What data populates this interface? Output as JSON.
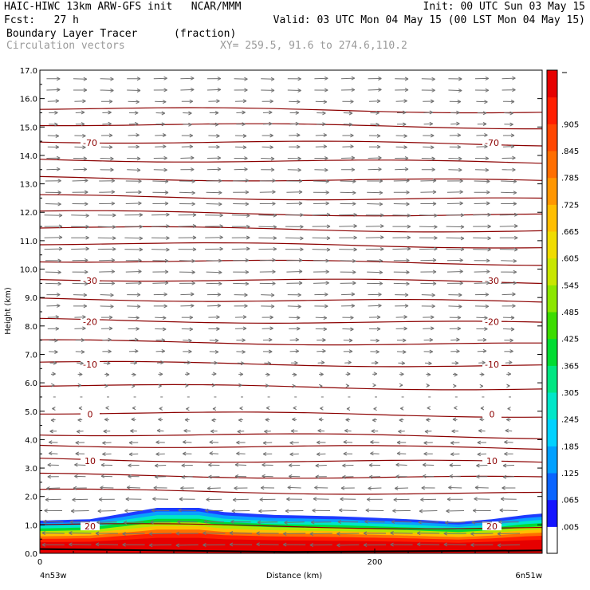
{
  "header": {
    "line1_left": "HAIC-HIWC 13km ARW-GFS init   NCAR/MMM",
    "line1_right": "Init: 00 UTC Sun 03 May 15",
    "line2_left": "Fcst:   27 h",
    "line2_right": "Valid: 03 UTC Mon 04 May 15 (00 LST Mon 04 May 15)",
    "field_name": "Boundary Layer Tracer",
    "field_units": "(fraction)",
    "vector_label": "Circulation vectors",
    "xy_label": "XY= 259.5, 91.6 to 274.6,110.2"
  },
  "chart_data": {
    "type": "heatmap",
    "title": "Boundary Layer Tracer",
    "ylabel": "Height (km)",
    "xlabel": "Distance (km)",
    "ylim": [
      0,
      17
    ],
    "yticks": [
      "0.0",
      "1.0",
      "2.0",
      "3.0",
      "4.0",
      "5.0",
      "6.0",
      "7.0",
      "8.0",
      "9.0",
      "10.0",
      "11.0",
      "12.0",
      "13.0",
      "14.0",
      "15.0",
      "16.0",
      "17.0"
    ],
    "xticks": [
      "0",
      "200"
    ],
    "x_start_label": "4n53w",
    "x_end_label": "6n51w",
    "colorbar": {
      "labels": [
        ".005",
        ".065",
        ".125",
        ".185",
        ".245",
        ".305",
        ".365",
        ".425",
        ".485",
        ".545",
        ".605",
        ".665",
        ".725",
        ".785",
        ".845",
        ".905"
      ],
      "colors": [
        "#ffffff",
        "#1414ff",
        "#0a64ff",
        "#00a0ff",
        "#00d2ff",
        "#00e6c8",
        "#00e682",
        "#00dc32",
        "#3cdc00",
        "#8ce600",
        "#c8e600",
        "#f0dc00",
        "#ffbe00",
        "#ff9600",
        "#ff6e00",
        "#ff4600",
        "#ff1e00",
        "#e60000"
      ]
    },
    "temperature_contours": [
      {
        "value": -70,
        "label": "-70"
      },
      {
        "value": -30,
        "label": "-30"
      },
      {
        "value": -20,
        "label": "-20"
      },
      {
        "value": -10,
        "label": "-10"
      },
      {
        "value": 0,
        "label": "0"
      },
      {
        "value": 10,
        "label": "10"
      },
      {
        "value": 20,
        "label": "20"
      }
    ],
    "contour_heights_km": [
      0.95,
      2.15,
      2.7,
      3.25,
      3.75,
      4.15,
      4.9,
      5.85,
      6.65,
      7.4,
      8.15,
      8.9,
      9.6,
      10.25,
      10.85,
      11.4,
      11.95,
      12.5,
      13.15,
      13.8,
      14.45,
      15.05,
      15.6
    ],
    "contour_label_heights_km": {
      "-70": 14.45,
      "-30": 9.6,
      "-20": 8.15,
      "-10": 6.65,
      "0": 4.9,
      "10": 3.25,
      "20": 0.95
    },
    "contour_label_x_km": [
      30,
      270
    ],
    "x_range_km": [
      0,
      300
    ],
    "bl_top_km": [
      [
        0,
        1.15
      ],
      [
        30,
        1.2
      ],
      [
        45,
        1.35
      ],
      [
        70,
        1.6
      ],
      [
        95,
        1.6
      ],
      [
        110,
        1.45
      ],
      [
        140,
        1.35
      ],
      [
        180,
        1.3
      ],
      [
        220,
        1.2
      ],
      [
        250,
        1.1
      ],
      [
        270,
        1.2
      ],
      [
        290,
        1.35
      ],
      [
        300,
        1.4
      ]
    ],
    "wind_levels_km": [
      0.3,
      0.7,
      1.1,
      1.5,
      1.9,
      2.3,
      2.7,
      3.1,
      3.5,
      3.9,
      4.3,
      4.7,
      5.1,
      5.5,
      5.9,
      6.3,
      6.7,
      7.1,
      7.5,
      7.9,
      8.3,
      8.7,
      9.1,
      9.5,
      9.9,
      10.3,
      10.7,
      11.1,
      11.5,
      11.9,
      12.3,
      12.7,
      13.1,
      13.5,
      13.9,
      14.3,
      14.7,
      15.1,
      15.5,
      15.9,
      16.3,
      16.7
    ],
    "wind_u": [
      -10,
      -10,
      -9,
      -8,
      -7,
      -6,
      -5,
      -5,
      -4,
      -4,
      -3,
      -2,
      -1,
      0,
      1,
      2,
      3,
      4,
      4,
      5,
      5,
      6,
      6,
      7,
      7,
      7,
      8,
      8,
      8,
      8,
      7,
      7,
      7,
      6,
      6,
      5,
      5,
      4,
      4,
      5,
      6,
      6
    ]
  }
}
